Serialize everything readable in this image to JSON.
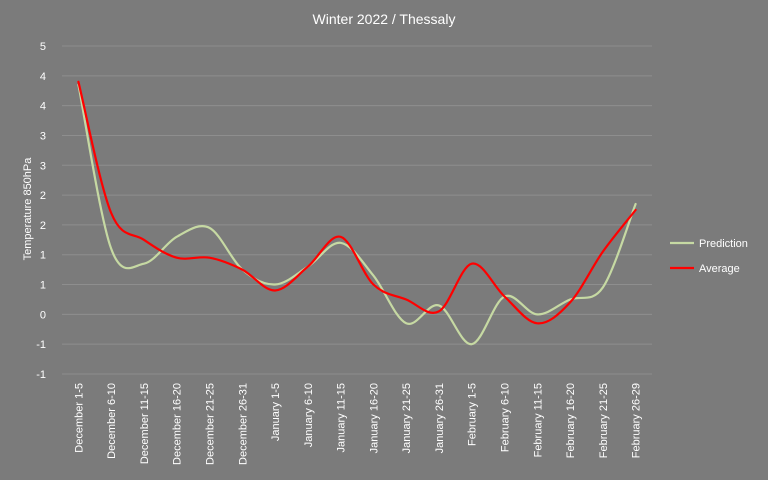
{
  "chart_data": {
    "type": "line",
    "title": "Winter 2022 / Thessaly",
    "xlabel": "",
    "ylabel": "Temperature  850hPa",
    "y_tick_labels": [
      "-1",
      "-1",
      "0",
      "1",
      "1",
      "2",
      "2",
      "3",
      "3",
      "4",
      "4",
      "5"
    ],
    "ylim": [
      -1,
      4.5
    ],
    "grid": true,
    "legend_position": "right",
    "categories": [
      "December 1-5",
      "December 6-10",
      "December 11-15",
      "December 16-20",
      "December 21-25",
      "December 26-31",
      "January 1-5",
      "January 6-10",
      "January 11-15",
      "January 16-20",
      "January 21-25",
      "January 26-31",
      "February 1-5",
      "February 6-10",
      "February 11-15",
      "February 16-20",
      "February 21-25",
      "February 26-29"
    ],
    "series": [
      {
        "name": "Prediction",
        "color": "#c6d9a3",
        "values": [
          3.85,
          1.1,
          0.85,
          1.3,
          1.45,
          0.75,
          0.5,
          0.8,
          1.2,
          0.65,
          -0.15,
          0.15,
          -0.5,
          0.3,
          0.0,
          0.25,
          0.45,
          1.85
        ]
      },
      {
        "name": "Average",
        "color": "#ff0000",
        "values": [
          3.9,
          1.7,
          1.25,
          0.95,
          0.95,
          0.75,
          0.4,
          0.8,
          1.3,
          0.5,
          0.25,
          0.05,
          0.85,
          0.3,
          -0.15,
          0.2,
          1.05,
          1.75
        ]
      }
    ]
  }
}
